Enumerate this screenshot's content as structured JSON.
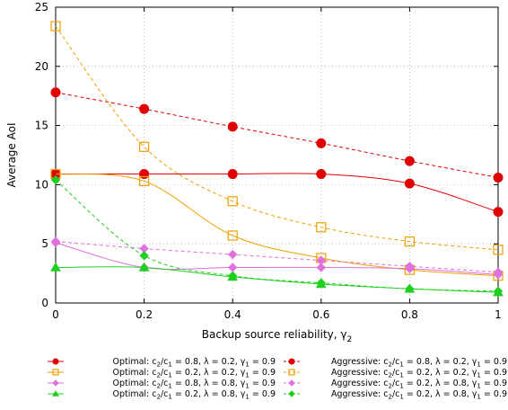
{
  "chart_data": {
    "type": "line",
    "xlabel": "Backup source reliability, γ",
    "xlabel_sub": "2",
    "ylabel": "Average AoI",
    "xlim": [
      0,
      1
    ],
    "ylim": [
      0,
      25
    ],
    "xticks": [
      0,
      0.2,
      0.4,
      0.6,
      0.8,
      1
    ],
    "xtick_labels": [
      "0",
      "0.2",
      "0.4",
      "0.6",
      "0.8",
      "1"
    ],
    "yticks": [
      0,
      5,
      10,
      15,
      20,
      25
    ],
    "ytick_labels": [
      "0",
      "5",
      "10",
      "15",
      "20",
      "25"
    ],
    "grid": true,
    "legend_position": "bottom",
    "x": [
      0,
      0.2,
      0.4,
      0.6,
      0.8,
      1
    ],
    "series": [
      {
        "name": "Optimal: c2/c1 = 0.8, λ = 0.2, γ1 = 0.9",
        "legend": {
          "prefix": "Optimal: c",
          "parts": [
            [
              "2",
              "/c"
            ],
            [
              "1",
              " = 0.8,  λ = 0.2, γ"
            ],
            [
              "1",
              " = 0.9"
            ]
          ]
        },
        "values": [
          10.9,
          10.9,
          10.9,
          10.9,
          10.1,
          7.7
        ],
        "color": "#e00000",
        "marker": "circle-filled",
        "line": "solid"
      },
      {
        "name": "Optimal: c2/c1 = 0.2, λ = 0.2, γ1 = 0.9",
        "legend": {
          "prefix": "Optimal: c",
          "parts": [
            [
              "2",
              "/c"
            ],
            [
              "1",
              " = 0.2,  λ = 0.2, γ"
            ],
            [
              "1",
              " = 0.9"
            ]
          ]
        },
        "values": [
          10.9,
          10.3,
          5.7,
          3.8,
          2.8,
          2.3
        ],
        "color": "#f0a000",
        "marker": "square-open",
        "line": "solid"
      },
      {
        "name": "Optimal: c2/c1 = 0.8, λ = 0.8, γ1 = 0.9",
        "legend": {
          "prefix": "Optimal: c",
          "parts": [
            [
              "2",
              "/c"
            ],
            [
              "1",
              " = 0.8,  λ = 0.8, γ"
            ],
            [
              "1",
              " = 0.9"
            ]
          ]
        },
        "values": [
          5.1,
          3.0,
          3.0,
          3.0,
          2.9,
          2.4
        ],
        "color": "#e070e0",
        "marker": "diamond-filled",
        "line": "solid"
      },
      {
        "name": "Optimal: c2/c1 = 0.2, λ = 0.8, γ1 = 0.9",
        "legend": {
          "prefix": "Optimal: c",
          "parts": [
            [
              "2",
              "/c"
            ],
            [
              "1",
              " = 0.2,  λ = 0.8, γ"
            ],
            [
              "1",
              " = 0.9"
            ]
          ]
        },
        "values": [
          3.0,
          3.0,
          2.2,
          1.6,
          1.2,
          0.9
        ],
        "color": "#20d020",
        "marker": "triangle-filled",
        "line": "solid"
      },
      {
        "name": "Aggressive: c2/c1 = 0.8, λ = 0.2, γ1 = 0.9",
        "legend": {
          "prefix": "Aggressive: c",
          "parts": [
            [
              "2",
              "/c"
            ],
            [
              "1",
              " = 0.8,  λ = 0.2, γ"
            ],
            [
              "1",
              " = 0.9"
            ]
          ]
        },
        "values": [
          17.8,
          16.4,
          14.9,
          13.5,
          12.0,
          10.6
        ],
        "color": "#e00000",
        "marker": "circle-filled",
        "line": "dashed"
      },
      {
        "name": "Aggressive: c2/c1 = 0.2, λ = 0.2, γ1 = 0.9",
        "legend": {
          "prefix": "Aggressive: c",
          "parts": [
            [
              "2",
              "/c"
            ],
            [
              "1",
              " = 0.2,  λ = 0.2, γ"
            ],
            [
              "1",
              " = 0.9"
            ]
          ]
        },
        "values": [
          23.4,
          13.2,
          8.6,
          6.4,
          5.2,
          4.5
        ],
        "color": "#f0a000",
        "marker": "square-open",
        "line": "dashed"
      },
      {
        "name": "Aggressive: c2/c1 = 0.2, λ = 0.8, γ1 = 0.9",
        "legend": {
          "prefix": "Aggressive: c",
          "parts": [
            [
              "2",
              "/c"
            ],
            [
              "1",
              " = 0.2,  λ = 0.8, γ"
            ],
            [
              "1",
              " = 0.9"
            ]
          ]
        },
        "values": [
          5.2,
          4.6,
          4.1,
          3.6,
          3.1,
          2.6
        ],
        "color": "#e070e0",
        "marker": "diamond-filled",
        "line": "dashed"
      },
      {
        "name": "Aggressive: c2/c1 = 0.2, λ = 0.8, γ1 = 0.9",
        "legend": {
          "prefix": "Aggressive: c",
          "parts": [
            [
              "2",
              "/c"
            ],
            [
              "1",
              " = 0.2,  λ = 0.8, γ"
            ],
            [
              "1",
              " = 0.9"
            ]
          ]
        },
        "values": [
          10.4,
          4.0,
          2.3,
          1.7,
          1.2,
          1.0
        ],
        "color": "#20d020",
        "marker": "diamond-filled",
        "line": "dashed"
      }
    ]
  }
}
